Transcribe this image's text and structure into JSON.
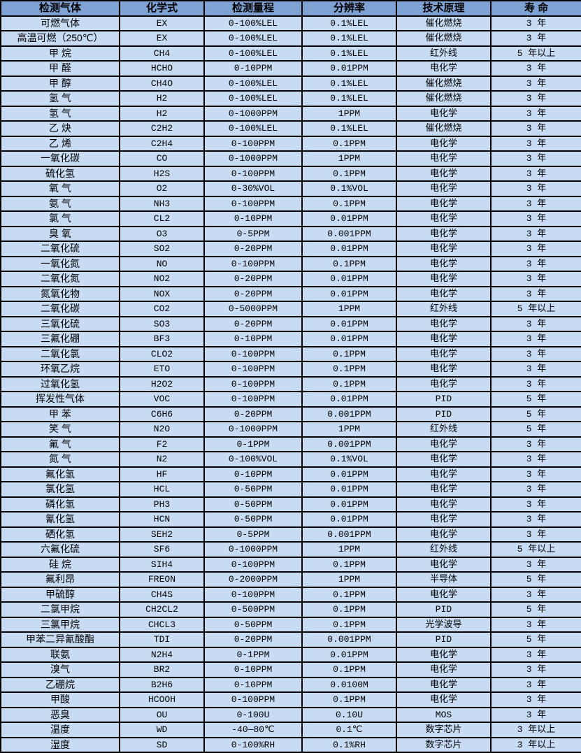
{
  "colors": {
    "header_bg": "#7ea2d4",
    "row_bg": "#c7dbf3",
    "border": "#000000",
    "text": "#000000"
  },
  "table": {
    "headers": [
      "检测气体",
      "化学式",
      "检测量程",
      "分辨率",
      "技术原理",
      "寿 命"
    ],
    "rows": [
      [
        "可燃气体",
        "EX",
        "0-100%LEL",
        "0.1%LEL",
        "催化燃烧",
        "3 年"
      ],
      [
        "高温可燃（250℃）",
        "EX",
        "0-100%LEL",
        "0.1%LEL",
        "催化燃烧",
        "3 年"
      ],
      [
        "甲 烷",
        "CH4",
        "0-100%LEL",
        "0.1%LEL",
        "红外线",
        "5 年以上"
      ],
      [
        "甲 醛",
        "HCHO",
        "0-10PPM",
        "0.01PPM",
        "电化学",
        "3 年"
      ],
      [
        "甲 醇",
        "CH4O",
        "0-100%LEL",
        "0.1%LEL",
        "催化燃烧",
        "3 年"
      ],
      [
        "氢 气",
        "H2",
        "0-100%LEL",
        "0.1%LEL",
        "催化燃烧",
        "3 年"
      ],
      [
        "氢 气",
        "H2",
        "0-1000PPM",
        "1PPM",
        "电化学",
        "3 年"
      ],
      [
        "乙 炔",
        "C2H2",
        "0-100%LEL",
        "0.1%LEL",
        "催化燃烧",
        "3 年"
      ],
      [
        "乙 烯",
        "C2H4",
        "0-100PPM",
        "0.1PPM",
        "电化学",
        "3 年"
      ],
      [
        "一氧化碳",
        "CO",
        "0-1000PPM",
        "1PPM",
        "电化学",
        "3 年"
      ],
      [
        "硫化氢",
        "H2S",
        "0-100PPM",
        "0.1PPM",
        "电化学",
        "3 年"
      ],
      [
        "氧 气",
        "O2",
        "0-30%VOL",
        "0.1%VOL",
        "电化学",
        "3 年"
      ],
      [
        "氨 气",
        "NH3",
        "0-100PPM",
        "0.1PPM",
        "电化学",
        "3 年"
      ],
      [
        "氯 气",
        "CL2",
        "0-10PPM",
        "0.01PPM",
        "电化学",
        "3 年"
      ],
      [
        "臭 氧",
        "O3",
        "0-5PPM",
        "0.001PPM",
        "电化学",
        "3 年"
      ],
      [
        "二氧化硫",
        "SO2",
        "0-20PPM",
        "0.01PPM",
        "电化学",
        "3 年"
      ],
      [
        "一氧化氮",
        "NO",
        "0-100PPM",
        "0.1PPM",
        "电化学",
        "3 年"
      ],
      [
        "二氧化氮",
        "NO2",
        "0-20PPM",
        "0.01PPM",
        "电化学",
        "3 年"
      ],
      [
        "氮氧化物",
        "NOX",
        "0-20PPM",
        "0.01PPM",
        "电化学",
        "3 年"
      ],
      [
        "二氧化碳",
        "CO2",
        "0-5000PPM",
        "1PPM",
        "红外线",
        "5 年以上"
      ],
      [
        "三氧化硫",
        "SO3",
        "0-20PPM",
        "0.01PPM",
        "电化学",
        "3 年"
      ],
      [
        "三氟化硼",
        "BF3",
        "0-10PPM",
        "0.01PPM",
        "电化学",
        "3 年"
      ],
      [
        "二氧化氯",
        "CLO2",
        "0-100PPM",
        "0.1PPM",
        "电化学",
        "3 年"
      ],
      [
        "环氧乙烷",
        "ETO",
        "0-100PPM",
        "0.1PPM",
        "电化学",
        "3 年"
      ],
      [
        "过氧化氢",
        "H2O2",
        "0-100PPM",
        "0.1PPM",
        "电化学",
        "3 年"
      ],
      [
        "挥发性气体",
        "VOC",
        "0-100PPM",
        "0.01PPM",
        "PID",
        "5 年"
      ],
      [
        "甲 苯",
        "C6H6",
        "0-20PPM",
        "0.001PPM",
        "PID",
        "5 年"
      ],
      [
        "笑 气",
        "N2O",
        "0-1000PPM",
        "1PPM",
        "红外线",
        "5 年"
      ],
      [
        "氟 气",
        "F2",
        "0-1PPM",
        "0.001PPM",
        "电化学",
        "3 年"
      ],
      [
        "氮 气",
        "N2",
        "0-100%VOL",
        "0.1%VOL",
        "电化学",
        "3 年"
      ],
      [
        "氟化氢",
        "HF",
        "0-10PPM",
        "0.01PPM",
        "电化学",
        "3 年"
      ],
      [
        "氯化氢",
        "HCL",
        "0-50PPM",
        "0.01PPM",
        "电化学",
        "3 年"
      ],
      [
        "磷化氢",
        "PH3",
        "0-50PPM",
        "0.01PPM",
        "电化学",
        "3 年"
      ],
      [
        "氰化氢",
        "HCN",
        "0-50PPM",
        "0.01PPM",
        "电化学",
        "3 年"
      ],
      [
        "硒化氢",
        "SEH2",
        "0-5PPM",
        "0.001PPM",
        "电化学",
        "3 年"
      ],
      [
        "六氟化硫",
        "SF6",
        "0-1000PPM",
        "1PPM",
        "红外线",
        "5 年以上"
      ],
      [
        "硅 烷",
        "SIH4",
        "0-100PPM",
        "0.1PPM",
        "电化学",
        "3 年"
      ],
      [
        "氟利昂",
        "FREON",
        "0-2000PPM",
        "1PPM",
        "半导体",
        "5 年"
      ],
      [
        "甲硫醇",
        "CH4S",
        "0-100PPM",
        "0.1PPM",
        "电化学",
        "3 年"
      ],
      [
        "二氯甲烷",
        "CH2CL2",
        "0-500PPM",
        "0.1PPM",
        "PID",
        "5 年"
      ],
      [
        "三氯甲烷",
        "CHCL3",
        "0-50PPM",
        "0.1PPM",
        "光学波导",
        "3 年"
      ],
      [
        "甲苯二异氰酸酯",
        "TDI",
        "0-20PPM",
        "0.001PPM",
        "PID",
        "5 年"
      ],
      [
        "联氨",
        "N2H4",
        "0-1PPM",
        "0.01PPM",
        "电化学",
        "3 年"
      ],
      [
        "溴气",
        "BR2",
        "0-10PPM",
        "0.1PPM",
        "电化学",
        "3 年"
      ],
      [
        "乙硼烷",
        "B2H6",
        "0-10PPM",
        "0.0100M",
        "电化学",
        "3 年"
      ],
      [
        "甲酸",
        "HCOOH",
        "0-100PPM",
        "0.1PPM",
        "电化学",
        "3 年"
      ],
      [
        "恶臭",
        "OU",
        "0-100U",
        "0.10U",
        "MOS",
        "3 年"
      ],
      [
        "温度",
        "WD",
        "-40—80℃",
        "0.1℃",
        "数字芯片",
        "3 年以上"
      ],
      [
        "湿度",
        "SD",
        "0-100%RH",
        "0.1%RH",
        "数字芯片",
        "3 年以上"
      ]
    ]
  }
}
